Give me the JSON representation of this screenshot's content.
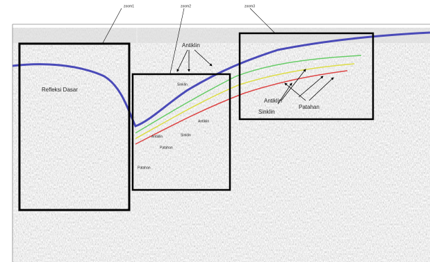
{
  "header": {
    "labels": [
      "zoom1",
      "zoom2",
      "zoom3"
    ]
  },
  "box1": {
    "label": "Refleksi Dasar"
  },
  "main": {
    "label": "Antiklin"
  },
  "box2": {
    "labels": [
      "Sinklin",
      "Antiklin",
      "Patahan",
      "Antiklin",
      "Sinklin",
      "Patahan"
    ]
  },
  "box3": {
    "labels": [
      "Antiklin",
      "Sinklin",
      "Patahan"
    ]
  }
}
